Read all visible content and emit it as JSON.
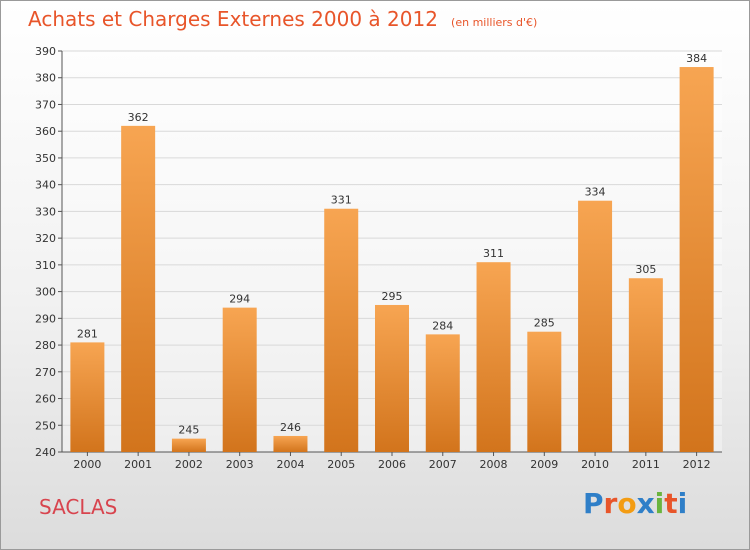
{
  "header": {
    "title": "Achats et Charges Externes 2000 à 2012",
    "subtitle": "(en milliers d'€)"
  },
  "footer": {
    "commune": "SACLAS",
    "logo_text": "Proxiti",
    "logo_colors": [
      "#2f7fc8",
      "#e8552a",
      "#f39c12",
      "#2f7fc8",
      "#6ab43e",
      "#e8552a",
      "#2f7fc8"
    ]
  },
  "colors": {
    "bar_light": "#f7a552",
    "bar_dark": "#d2741c",
    "title": "#e8552a",
    "commune": "#d8444e",
    "grid": "#d9d9d9"
  },
  "chart_data": {
    "type": "bar",
    "title": "Achats et Charges Externes 2000 à 2012",
    "subtitle": "(en milliers d'€)",
    "categories": [
      "2000",
      "2001",
      "2002",
      "2003",
      "2004",
      "2005",
      "2006",
      "2007",
      "2008",
      "2009",
      "2010",
      "2011",
      "2012"
    ],
    "values": [
      281,
      362,
      245,
      294,
      246,
      331,
      295,
      284,
      311,
      285,
      334,
      305,
      384
    ],
    "ylim": [
      240,
      390
    ],
    "ytick_step": 10,
    "grid": true,
    "data_labels": true
  }
}
